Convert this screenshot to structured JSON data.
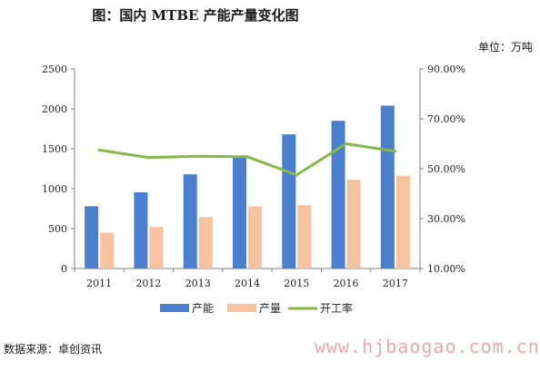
{
  "title": "图：国内 MTBE 产能产量变化图",
  "unit_label": "单位：万吨",
  "source_label": "数据来源：卓创资讯",
  "watermark_text": "www.hjbaogao.com.cn",
  "colors": {
    "capacity": "#4a7fcf",
    "output": "#f9c29e",
    "utilization": "#86b94a",
    "axis": "#7f7f7f"
  },
  "chart_data": {
    "type": "bar",
    "title": "图：国内 MTBE 产能产量变化图",
    "categories": [
      "2011",
      "2012",
      "2013",
      "2014",
      "2015",
      "2016",
      "2017"
    ],
    "series": [
      {
        "name": "产能",
        "type": "bar",
        "axis": "left",
        "values": [
          780,
          955,
          1180,
          1400,
          1680,
          1850,
          2040
        ]
      },
      {
        "name": "产量",
        "type": "bar",
        "axis": "left",
        "values": [
          450,
          520,
          645,
          780,
          795,
          1110,
          1160
        ]
      },
      {
        "name": "开工率",
        "type": "line",
        "axis": "right",
        "values": [
          57.5,
          54.5,
          55.0,
          54.8,
          47.5,
          60.0,
          57.0
        ]
      }
    ],
    "y_left": {
      "ylim": [
        0,
        2500
      ],
      "ticks": [
        "0",
        "500",
        "1000",
        "1500",
        "2000",
        "2500"
      ]
    },
    "y_right": {
      "ylim": [
        10,
        90
      ],
      "ticks": [
        "10.00%",
        "30.00%",
        "50.00%",
        "70.00%",
        "90.00%"
      ]
    },
    "legend_position": "bottom",
    "grid": false
  }
}
